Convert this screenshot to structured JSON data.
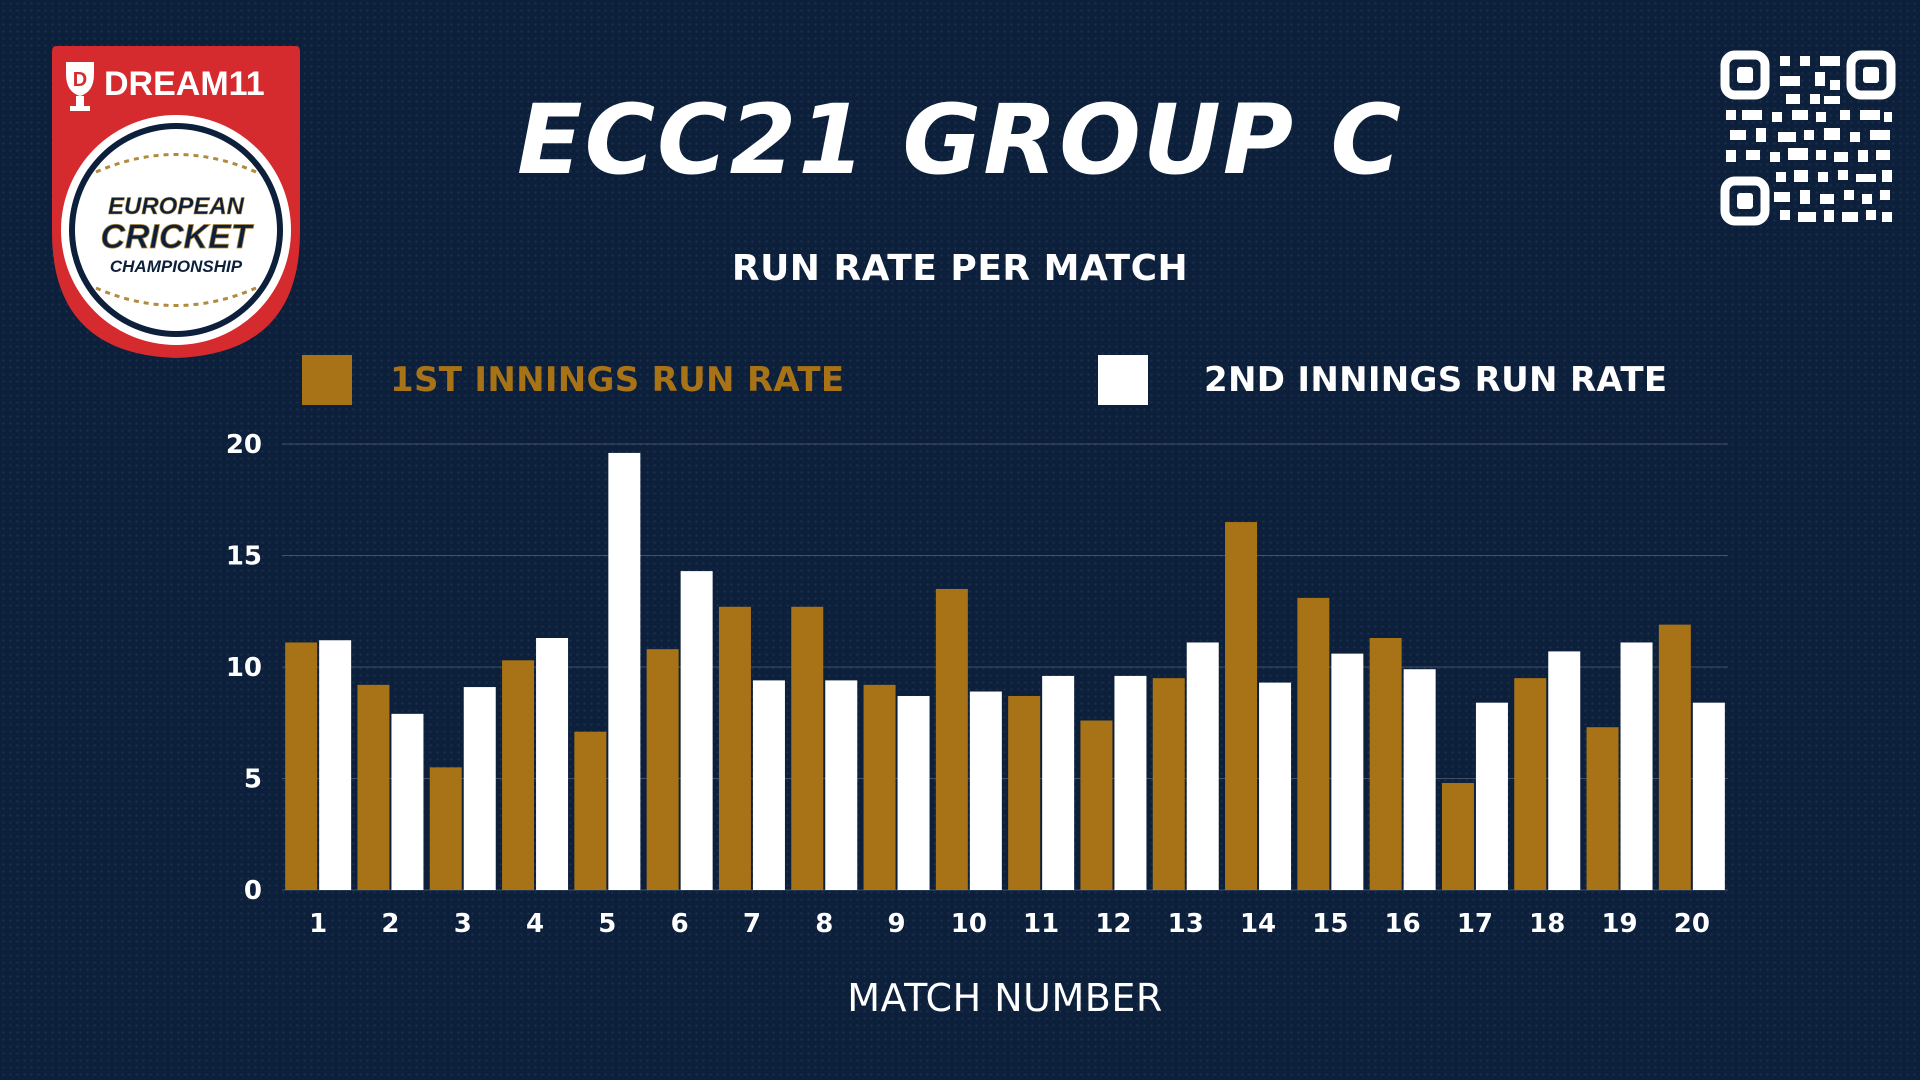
{
  "logo": {
    "brand_text": "DREAM11",
    "line1": "EUROPEAN",
    "line2": "CRICKET",
    "line3": "CHAMPIONSHIP"
  },
  "header": {
    "title": "ECC21 GROUP C",
    "subtitle": "RUN RATE PER MATCH"
  },
  "colors": {
    "background": "#0c1f3b",
    "first_innings": "#a87316",
    "second_innings": "#ffffff",
    "logo_red": "#d62b2e",
    "logo_gold": "#b08a3e"
  },
  "chart_data": {
    "type": "bar",
    "xlabel": "MATCH NUMBER",
    "ylabel": "",
    "ylim": [
      0,
      20
    ],
    "yticks": [
      0,
      5,
      10,
      15,
      20
    ],
    "grid": true,
    "legend_position": "top",
    "categories": [
      "1",
      "2",
      "3",
      "4",
      "5",
      "6",
      "7",
      "8",
      "9",
      "10",
      "11",
      "12",
      "13",
      "14",
      "15",
      "16",
      "17",
      "18",
      "19",
      "20"
    ],
    "series": [
      {
        "name": "1ST INNINGS RUN RATE",
        "color": "#a87316",
        "values": [
          11.1,
          9.2,
          5.5,
          10.3,
          7.1,
          10.8,
          12.7,
          12.7,
          9.2,
          13.5,
          8.7,
          7.6,
          9.5,
          16.5,
          13.1,
          11.3,
          4.8,
          9.5,
          7.3,
          11.9
        ]
      },
      {
        "name": "2ND INNINGS RUN RATE",
        "color": "#ffffff",
        "values": [
          11.2,
          7.9,
          9.1,
          11.3,
          19.6,
          14.3,
          9.4,
          9.4,
          8.7,
          8.9,
          9.6,
          9.6,
          11.1,
          9.3,
          10.6,
          9.9,
          8.4,
          10.7,
          11.1,
          8.4
        ]
      }
    ]
  }
}
